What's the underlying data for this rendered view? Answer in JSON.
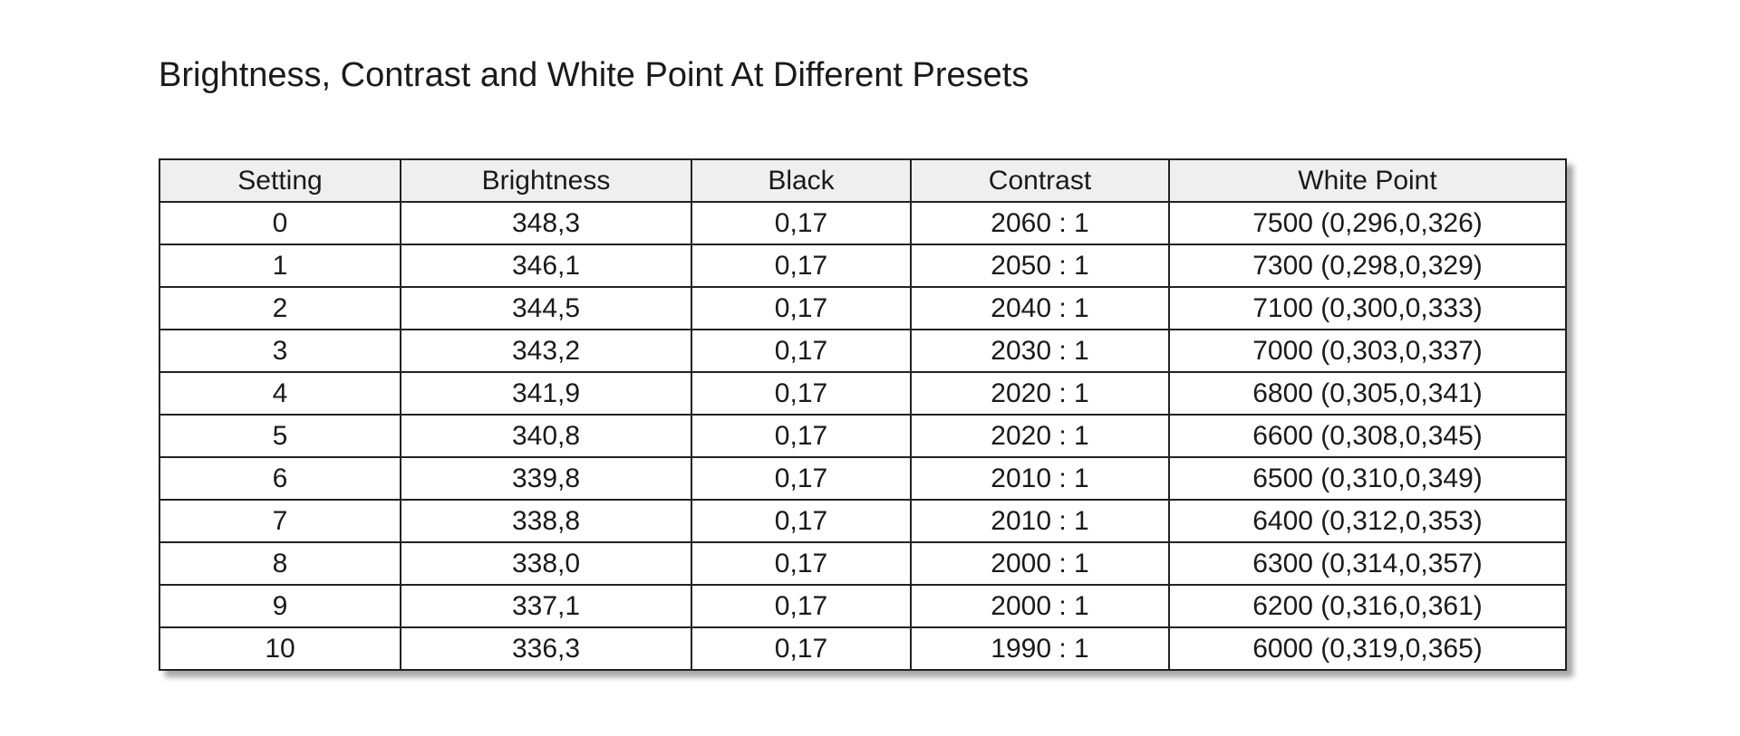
{
  "title": "Brightness, Contrast and White Point At Different Presets",
  "table": {
    "header": [
      "Setting",
      "Brightness",
      "Black",
      "Contrast",
      "White Point"
    ],
    "rows": [
      [
        "0",
        "348,3",
        "0,17",
        "2060 : 1",
        "7500 (0,296,0,326)"
      ],
      [
        "1",
        "346,1",
        "0,17",
        "2050 : 1",
        "7300 (0,298,0,329)"
      ],
      [
        "2",
        "344,5",
        "0,17",
        "2040 : 1",
        "7100 (0,300,0,333)"
      ],
      [
        "3",
        "343,2",
        "0,17",
        "2030 : 1",
        "7000 (0,303,0,337)"
      ],
      [
        "4",
        "341,9",
        "0,17",
        "2020 : 1",
        "6800 (0,305,0,341)"
      ],
      [
        "5",
        "340,8",
        "0,17",
        "2020 : 1",
        "6600 (0,308,0,345)"
      ],
      [
        "6",
        "339,8",
        "0,17",
        "2010 : 1",
        "6500 (0,310,0,349)"
      ],
      [
        "7",
        "338,8",
        "0,17",
        "2010 : 1",
        "6400 (0,312,0,353)"
      ],
      [
        "8",
        "338,0",
        "0,17",
        "2000 : 1",
        "6300 (0,314,0,357)"
      ],
      [
        "9",
        "337,1",
        "0,17",
        "2000 : 1",
        "6200 (0,316,0,361)"
      ],
      [
        "10",
        "336,3",
        "0,17",
        "1990 : 1",
        "6000 (0,319,0,365)"
      ]
    ]
  }
}
